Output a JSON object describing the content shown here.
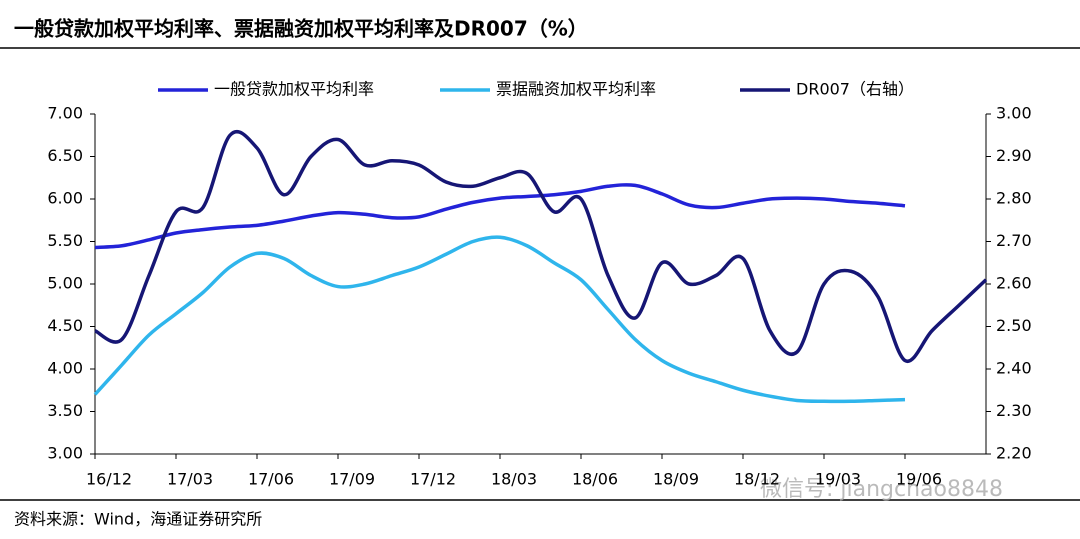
{
  "chart_data": {
    "type": "line",
    "title": "一般贷款加权平均利率、票据融资加权平均利率及DR007（%）",
    "source": "资料来源：Wind，海通证券研究所",
    "watermark": "微信号: jiangchao8848",
    "categories": [
      "16/12",
      null,
      null,
      "17/03",
      null,
      null,
      "17/06",
      null,
      null,
      "17/09",
      null,
      null,
      "17/12",
      null,
      null,
      "18/03",
      null,
      null,
      "18/06",
      null,
      null,
      "18/09",
      null,
      null,
      "18/12",
      null,
      null,
      "19/03",
      null,
      null,
      "19/06",
      null,
      null,
      null
    ],
    "series": [
      {
        "name": "一般贷款加权平均利率",
        "color": "#2323d8",
        "values": [
          5.43,
          5.45,
          5.52,
          5.6,
          5.64,
          5.67,
          5.69,
          5.74,
          5.8,
          5.84,
          5.82,
          5.78,
          5.79,
          5.88,
          5.96,
          6.01,
          6.03,
          6.05,
          6.09,
          6.15,
          6.16,
          6.06,
          5.93,
          5.9,
          5.95,
          6.0,
          6.01,
          6.0,
          5.97,
          5.95,
          5.92,
          null,
          null,
          null
        ]
      },
      {
        "name": "票据融资加权平均利率",
        "color": "#2fb5ec",
        "values": [
          3.7,
          4.05,
          4.4,
          4.65,
          4.9,
          5.2,
          5.36,
          5.3,
          5.1,
          4.97,
          5.0,
          5.1,
          5.2,
          5.35,
          5.5,
          5.55,
          5.45,
          5.25,
          5.05,
          4.7,
          4.35,
          4.1,
          3.95,
          3.85,
          3.75,
          3.68,
          3.63,
          3.62,
          3.62,
          3.63,
          3.64,
          null,
          null,
          null
        ]
      },
      {
        "name": "DR007（右轴）",
        "color": "#161675",
        "axis": "y2",
        "values": [
          2.49,
          2.47,
          2.62,
          2.77,
          2.78,
          2.95,
          2.92,
          2.81,
          2.9,
          2.94,
          2.88,
          2.89,
          2.88,
          2.84,
          2.83,
          2.85,
          2.86,
          2.77,
          2.8,
          2.62,
          2.52,
          2.65,
          2.6,
          2.62,
          2.66,
          2.49,
          2.44,
          2.6,
          2.63,
          2.57,
          2.42,
          2.49,
          2.55,
          2.61
        ]
      }
    ],
    "ylim": [
      3,
      7
    ],
    "yticks": [
      {
        "value": 3,
        "label": "3.00"
      },
      {
        "value": 3.5,
        "label": "3.50"
      },
      {
        "value": 4,
        "label": "4.00"
      },
      {
        "value": 4.5,
        "label": "4.50"
      },
      {
        "value": 5,
        "label": "5.00"
      },
      {
        "value": 5.5,
        "label": "5.50"
      },
      {
        "value": 6,
        "label": "6.00"
      },
      {
        "value": 6.5,
        "label": "6.50"
      },
      {
        "value": 7,
        "label": "7.00"
      }
    ],
    "y2lim": [
      2.2,
      3
    ],
    "y2ticks": [
      {
        "value": 2.2,
        "label": "2.20"
      },
      {
        "value": 2.3,
        "label": "2.30"
      },
      {
        "value": 2.4,
        "label": "2.40"
      },
      {
        "value": 2.5,
        "label": "2.50"
      },
      {
        "value": 2.6,
        "label": "2.60"
      },
      {
        "value": 2.7,
        "label": "2.70"
      },
      {
        "value": 2.8,
        "label": "2.80"
      },
      {
        "value": 2.9,
        "label": "2.90"
      },
      {
        "value": 3,
        "label": "3.00"
      }
    ]
  }
}
